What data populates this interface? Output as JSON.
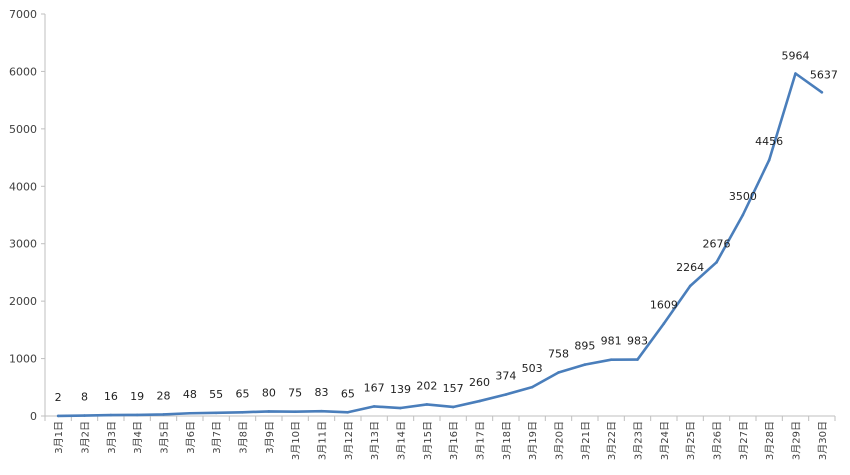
{
  "chart_data": {
    "type": "line",
    "title": "",
    "xlabel": "",
    "ylabel": "",
    "ylim": [
      0,
      7000
    ],
    "yticks": [
      0,
      1000,
      2000,
      3000,
      4000,
      5000,
      6000,
      7000
    ],
    "grid": false,
    "legend": "none",
    "categories": [
      "3月1日",
      "3月2日",
      "3月3日",
      "3月4日",
      "3月5日",
      "3月6日",
      "3月7日",
      "3月8日",
      "3月9日",
      "3月10日",
      "3月11日",
      "3月12日",
      "3月13日",
      "3月14日",
      "3月15日",
      "3月16日",
      "3月17日",
      "3月18日",
      "3月19日",
      "3月20日",
      "3月21日",
      "3月22日",
      "3月23日",
      "3月24日",
      "3月25日",
      "3月26日",
      "3月27日",
      "3月28日",
      "3月29日",
      "3月30日"
    ],
    "series": [
      {
        "color": "#4a7ebb",
        "values": [
          2,
          8,
          16,
          19,
          28,
          48,
          55,
          65,
          80,
          75,
          83,
          65,
          167,
          139,
          202,
          157,
          260,
          374,
          503,
          758,
          895,
          981,
          983,
          1609,
          2264,
          2676,
          3500,
          4456,
          5964,
          5637
        ]
      }
    ]
  }
}
